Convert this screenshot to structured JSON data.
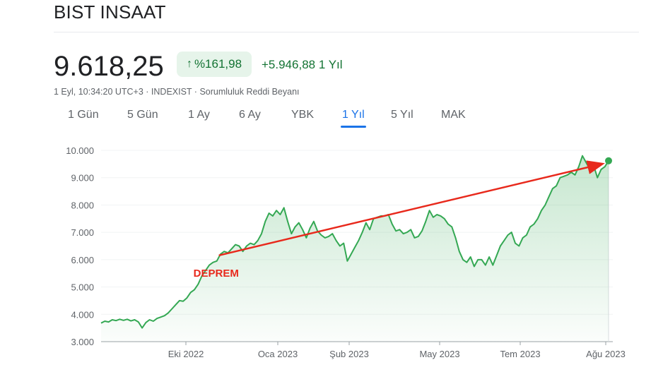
{
  "header": {
    "title": "BIST INSAAT",
    "price": "9.618,25",
    "percent_change": "%161,98",
    "abs_change": "+5.946,88 1 Yıl",
    "meta": "1 Eyl, 10:34:20 UTC+3 · INDEXIST · Sorumluluk Reddi Beyanı"
  },
  "icons": {
    "up_arrow": "arrow-up-icon"
  },
  "colors": {
    "accent": "#1a73e8",
    "positive": "#137333",
    "series": "#34a853",
    "annotation": "#e8291c"
  },
  "ranges": [
    {
      "label": "1 Gün",
      "active": false
    },
    {
      "label": "5 Gün",
      "active": false
    },
    {
      "label": "1 Ay",
      "active": false
    },
    {
      "label": "6 Ay",
      "active": false
    },
    {
      "label": "YBK",
      "active": false
    },
    {
      "label": "1 Yıl",
      "active": true
    },
    {
      "label": "5 Yıl",
      "active": false
    },
    {
      "label": "MAK",
      "active": false
    }
  ],
  "chart_data": {
    "type": "area",
    "title": "",
    "xlabel": "",
    "ylabel": "",
    "ylim": [
      3000,
      10000
    ],
    "y_ticks": [
      3000,
      4000,
      5000,
      6000,
      7000,
      8000,
      9000,
      10000
    ],
    "y_tick_labels": [
      "3.000",
      "4.000",
      "5.000",
      "6.000",
      "7.000",
      "8.000",
      "9.000",
      "10.000"
    ],
    "x_tick_labels": [
      "Eki 2022",
      "Oca 2023",
      "Şub 2023",
      "May 2023",
      "Tem 2023",
      "Ağu 2023"
    ],
    "grid": true,
    "series": [
      {
        "values": [
          3680,
          3750,
          3720,
          3800,
          3770,
          3820,
          3780,
          3820,
          3760,
          3800,
          3720,
          3500,
          3700,
          3800,
          3750,
          3850,
          3900,
          3950,
          4050,
          4200,
          4350,
          4500,
          4480,
          4600,
          4800,
          4900,
          5100,
          5400,
          5600,
          5800,
          5900,
          5950,
          6200,
          6300,
          6250,
          6400,
          6550,
          6500,
          6300,
          6500,
          6600,
          6550,
          6700,
          6950,
          7400,
          7700,
          7600,
          7800,
          7650,
          7900,
          7400,
          6950,
          7200,
          7350,
          7100,
          6800,
          7150,
          7400,
          7050,
          6900,
          6800,
          6850,
          6950,
          6700,
          6500,
          6600,
          5950,
          6200,
          6450,
          6700,
          7000,
          7350,
          7100,
          7500,
          7550,
          7600,
          7600,
          7650,
          7300,
          7050,
          7100,
          6950,
          7000,
          7100,
          6800,
          6850,
          7050,
          7400,
          7800,
          7550,
          7650,
          7600,
          7500,
          7300,
          7200,
          6800,
          6300,
          6000,
          5900,
          6100,
          5750,
          6000,
          6000,
          5800,
          6100,
          5800,
          6150,
          6500,
          6700,
          6900,
          7000,
          6600,
          6500,
          6800,
          6900,
          7200,
          7300,
          7500,
          7800,
          8000,
          8300,
          8600,
          8700,
          9000,
          9050,
          9100,
          9200,
          9100,
          9400,
          9800,
          9550,
          9300,
          9450,
          9000,
          9300,
          9400,
          9618
        ]
      }
    ],
    "annotations": [
      {
        "text": "DEPREM",
        "from_value": 5950,
        "to_value": 9500
      }
    ]
  }
}
